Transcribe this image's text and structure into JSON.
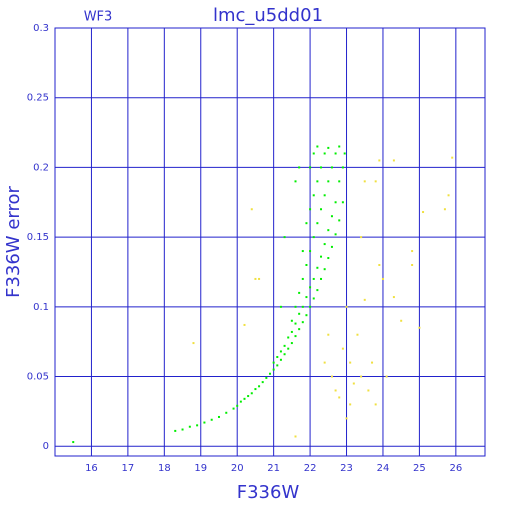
{
  "chart_data": {
    "type": "scatter",
    "title": "lmc_u5dd01",
    "annotation": "WF3",
    "x_label": "F336W",
    "y_label": "F336W error",
    "xlim": [
      15,
      26.8
    ],
    "ylim": [
      -0.007,
      0.3
    ],
    "xticks": [
      16,
      17,
      18,
      19,
      20,
      21,
      22,
      23,
      24,
      25,
      26
    ],
    "yticks": [
      0,
      0.05,
      0.1,
      0.15,
      0.2,
      0.25,
      0.3
    ],
    "grid": true,
    "grid_color": "#2222cc",
    "series": [
      {
        "color": "#00ee00",
        "x": [
          15.5,
          18.3,
          18.5,
          18.7,
          18.9,
          19.1,
          19.3,
          19.5,
          19.7,
          19.9,
          20.0,
          20.1,
          20.2,
          20.3,
          20.4,
          20.5,
          20.6,
          20.7,
          20.8,
          20.9,
          21.0,
          21.0,
          21.1,
          21.1,
          21.2,
          21.2,
          21.3,
          21.3,
          21.4,
          21.4,
          21.5,
          21.5,
          21.5,
          21.6,
          21.6,
          21.6,
          21.7,
          21.7,
          21.7,
          21.8,
          21.8,
          21.8,
          21.8,
          21.9,
          21.9,
          21.9,
          21.9,
          22.0,
          22.0,
          22.0,
          22.0,
          22.0,
          22.1,
          22.1,
          22.1,
          22.1,
          22.1,
          22.2,
          22.2,
          22.2,
          22.2,
          22.2,
          22.3,
          22.3,
          22.3,
          22.3,
          22.4,
          22.4,
          22.4,
          22.4,
          22.5,
          22.5,
          22.5,
          22.5,
          22.6,
          22.6,
          22.6,
          22.7,
          22.7,
          22.7,
          22.8,
          22.8,
          22.8,
          22.9,
          22.9,
          22.95,
          21.7,
          21.6,
          21.3,
          21.2
        ],
        "values": [
          0.003,
          0.011,
          0.012,
          0.014,
          0.015,
          0.017,
          0.019,
          0.021,
          0.024,
          0.027,
          0.029,
          0.032,
          0.034,
          0.036,
          0.038,
          0.041,
          0.043,
          0.046,
          0.049,
          0.052,
          0.055,
          0.06,
          0.058,
          0.064,
          0.062,
          0.068,
          0.066,
          0.072,
          0.07,
          0.078,
          0.074,
          0.082,
          0.09,
          0.079,
          0.088,
          0.1,
          0.084,
          0.095,
          0.11,
          0.089,
          0.1,
          0.12,
          0.14,
          0.094,
          0.107,
          0.13,
          0.16,
          0.1,
          0.114,
          0.14,
          0.17,
          0.2,
          0.106,
          0.12,
          0.15,
          0.18,
          0.21,
          0.112,
          0.128,
          0.16,
          0.19,
          0.215,
          0.12,
          0.136,
          0.17,
          0.2,
          0.127,
          0.145,
          0.18,
          0.21,
          0.135,
          0.155,
          0.19,
          0.214,
          0.143,
          0.165,
          0.2,
          0.152,
          0.175,
          0.21,
          0.162,
          0.19,
          0.215,
          0.175,
          0.2,
          0.21,
          0.2,
          0.19,
          0.15,
          0.1
        ]
      },
      {
        "color": "#f0e040",
        "x": [
          18.8,
          20.5,
          20.4,
          20.2,
          20.6,
          21.6,
          22.4,
          22.5,
          22.6,
          22.7,
          22.8,
          23.0,
          23.1,
          23.2,
          23.3,
          23.4,
          23.5,
          23.6,
          23.7,
          23.8,
          23.8,
          23.9,
          23.9,
          24.0,
          24.1,
          24.3,
          24.3,
          24.5,
          24.8,
          24.8,
          25.0,
          25.1,
          25.7,
          25.8,
          25.9,
          23.4,
          23.0,
          23.1,
          22.9,
          23.5
        ],
        "values": [
          0.074,
          0.12,
          0.17,
          0.087,
          0.12,
          0.007,
          0.06,
          0.08,
          0.05,
          0.04,
          0.035,
          0.02,
          0.03,
          0.045,
          0.08,
          0.05,
          0.19,
          0.04,
          0.06,
          0.19,
          0.03,
          0.13,
          0.205,
          0.12,
          0.05,
          0.205,
          0.107,
          0.09,
          0.14,
          0.13,
          0.085,
          0.168,
          0.17,
          0.18,
          0.207,
          0.15,
          0.1,
          0.06,
          0.07,
          0.105
        ]
      }
    ]
  }
}
